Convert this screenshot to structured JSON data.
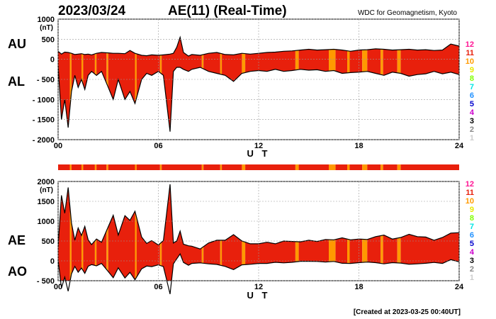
{
  "header": {
    "date": "2023/03/24",
    "title": "AE(11) (Real-Time)",
    "source": "WDC for Geomagnetism, Kyoto"
  },
  "footer": {
    "created": "[Created at 2023-03-25 00:40UT]"
  },
  "legend": {
    "items": [
      {
        "label": "12",
        "color": "#ff1493"
      },
      {
        "label": "11",
        "color": "#e8200c"
      },
      {
        "label": "10",
        "color": "#ff9a00"
      },
      {
        "label": "9",
        "color": "#e8e800"
      },
      {
        "label": "8",
        "color": "#7fff00"
      },
      {
        "label": "7",
        "color": "#00e5e5"
      },
      {
        "label": "6",
        "color": "#1e90ff"
      },
      {
        "label": "5",
        "color": "#0000cd"
      },
      {
        "label": "4",
        "color": "#cc00cc"
      },
      {
        "label": "3",
        "color": "#000000"
      },
      {
        "label": "2",
        "color": "#888888"
      },
      {
        "label": "1",
        "color": "#cccccc"
      }
    ]
  },
  "chart_data": [
    {
      "type": "area",
      "series": [
        {
          "name": "AU"
        },
        {
          "name": "AL"
        }
      ],
      "xlabel": "U T",
      "xlim": [
        0,
        24
      ],
      "xticks": [
        "00",
        "06",
        "12",
        "18",
        "24"
      ],
      "ylabel": "(nT)",
      "ylim": [
        -2000,
        1000
      ],
      "yticks": [
        "1000",
        "500",
        "0",
        "- 500",
        "- 1000",
        "- 1500",
        "- 2000"
      ],
      "x": [
        0,
        0.2,
        0.4,
        0.6,
        0.8,
        1,
        1.2,
        1.4,
        1.6,
        1.8,
        2,
        2.3,
        2.6,
        3,
        3.3,
        3.6,
        4,
        4.3,
        4.6,
        5,
        5.3,
        5.6,
        6,
        6.3,
        6.5,
        6.7,
        6.9,
        7.1,
        7.3,
        7.5,
        7.8,
        8,
        8.5,
        9,
        9.5,
        10,
        10.5,
        11,
        11.5,
        12,
        12.5,
        13,
        13.5,
        14,
        14.5,
        15,
        15.5,
        16,
        16.5,
        17,
        17.5,
        18,
        18.5,
        19,
        19.5,
        20,
        20.5,
        21,
        21.5,
        22,
        22.5,
        23,
        23.5,
        24
      ],
      "au": [
        200,
        130,
        180,
        170,
        150,
        120,
        130,
        140,
        120,
        130,
        110,
        150,
        170,
        160,
        150,
        150,
        140,
        220,
        150,
        100,
        90,
        110,
        100,
        110,
        120,
        130,
        150,
        300,
        550,
        170,
        80,
        120,
        100,
        150,
        170,
        120,
        110,
        150,
        130,
        150,
        170,
        180,
        200,
        210,
        230,
        250,
        230,
        240,
        250,
        230,
        200,
        230,
        240,
        260,
        250,
        230,
        240,
        250,
        230,
        240,
        220,
        230,
        380,
        330
      ],
      "al": [
        -150,
        -1500,
        -1000,
        -1700,
        -800,
        -400,
        -700,
        -500,
        -750,
        -400,
        -300,
        -400,
        -300,
        -700,
        -1000,
        -500,
        -1000,
        -800,
        -1100,
        -500,
        -350,
        -400,
        -300,
        -400,
        -1100,
        -1800,
        -300,
        -200,
        -200,
        -250,
        -300,
        -250,
        -200,
        -300,
        -350,
        -400,
        -550,
        -350,
        -300,
        -280,
        -300,
        -250,
        -300,
        -280,
        -250,
        -270,
        -260,
        -300,
        -280,
        -350,
        -330,
        -320,
        -300,
        -350,
        -400,
        -320,
        -350,
        -420,
        -380,
        -360,
        -300,
        -360,
        -320,
        -380
      ],
      "activity_bands": [
        [
          0,
          11
        ],
        [
          0.7,
          10
        ],
        [
          0.8,
          11
        ],
        [
          1.4,
          10
        ],
        [
          1.5,
          11
        ],
        [
          2.2,
          10
        ],
        [
          2.3,
          11
        ],
        [
          2.9,
          10
        ],
        [
          3.0,
          11
        ],
        [
          4.6,
          10
        ],
        [
          4.7,
          11
        ],
        [
          6.1,
          10
        ],
        [
          6.2,
          11
        ],
        [
          8.6,
          10
        ],
        [
          8.7,
          11
        ],
        [
          9.7,
          10
        ],
        [
          9.8,
          11
        ],
        [
          11.0,
          10
        ],
        [
          11.2,
          11
        ],
        [
          14.2,
          10
        ],
        [
          14.4,
          11
        ],
        [
          16.2,
          10
        ],
        [
          16.6,
          11
        ],
        [
          17.3,
          10
        ],
        [
          17.45,
          11
        ],
        [
          18.2,
          10
        ],
        [
          18.5,
          11
        ],
        [
          19.3,
          10
        ],
        [
          19.45,
          11
        ],
        [
          20.3,
          10
        ],
        [
          20.5,
          11
        ],
        [
          24,
          11
        ]
      ]
    },
    {
      "type": "area",
      "series": [
        {
          "name": "AE"
        },
        {
          "name": "AO"
        }
      ],
      "xlabel": "U T",
      "xlim": [
        0,
        24
      ],
      "xticks": [
        "00",
        "06",
        "12",
        "18",
        "24"
      ],
      "ylabel": "(nT)",
      "ylim": [
        -500,
        2000
      ],
      "yticks": [
        "2000",
        "1500",
        "1000",
        "500",
        "0",
        "- 500"
      ],
      "x": [
        0,
        0.2,
        0.4,
        0.6,
        0.8,
        1,
        1.2,
        1.4,
        1.6,
        1.8,
        2,
        2.3,
        2.6,
        3,
        3.3,
        3.6,
        4,
        4.3,
        4.6,
        5,
        5.3,
        5.6,
        6,
        6.3,
        6.5,
        6.7,
        6.9,
        7.1,
        7.3,
        7.5,
        7.8,
        8,
        8.5,
        9,
        9.5,
        10,
        10.5,
        11,
        11.5,
        12,
        12.5,
        13,
        13.5,
        14,
        14.5,
        15,
        15.5,
        16,
        16.5,
        17,
        17.5,
        18,
        18.5,
        19,
        19.5,
        20,
        20.5,
        21,
        21.5,
        22,
        22.5,
        23,
        23.5,
        24
      ],
      "ae": [
        350,
        1650,
        1200,
        1850,
        950,
        520,
        830,
        640,
        870,
        530,
        410,
        550,
        470,
        860,
        1150,
        650,
        1140,
        1020,
        1250,
        600,
        440,
        510,
        400,
        510,
        1220,
        1930,
        450,
        500,
        750,
        420,
        380,
        370,
        300,
        450,
        520,
        520,
        660,
        500,
        430,
        430,
        470,
        430,
        500,
        490,
        480,
        520,
        490,
        540,
        530,
        580,
        530,
        550,
        540,
        610,
        650,
        550,
        590,
        670,
        610,
        600,
        520,
        590,
        700,
        710
      ],
      "ao": [
        25,
        -685,
        -410,
        -765,
        -325,
        -140,
        -285,
        -180,
        -315,
        -135,
        -95,
        -125,
        -65,
        -270,
        -425,
        -175,
        -430,
        -290,
        -475,
        -200,
        -130,
        -145,
        -100,
        -145,
        -490,
        -835,
        -75,
        50,
        175,
        -40,
        -110,
        -65,
        -50,
        -75,
        -90,
        -140,
        -220,
        -100,
        -85,
        -65,
        -65,
        -35,
        -50,
        -35,
        -10,
        -10,
        -15,
        -30,
        -15,
        -60,
        -65,
        -45,
        -30,
        -45,
        -75,
        -45,
        -55,
        -85,
        -75,
        -60,
        -40,
        -65,
        30,
        -25
      ],
      "activity_bands": [
        [
          0,
          11
        ],
        [
          0.7,
          10
        ],
        [
          0.8,
          11
        ],
        [
          1.4,
          10
        ],
        [
          1.5,
          11
        ],
        [
          2.2,
          10
        ],
        [
          2.3,
          11
        ],
        [
          2.9,
          10
        ],
        [
          3.0,
          11
        ],
        [
          4.6,
          10
        ],
        [
          4.7,
          11
        ],
        [
          6.1,
          10
        ],
        [
          6.2,
          11
        ],
        [
          8.6,
          10
        ],
        [
          8.7,
          11
        ],
        [
          9.7,
          10
        ],
        [
          9.8,
          11
        ],
        [
          11.0,
          10
        ],
        [
          11.2,
          11
        ],
        [
          14.2,
          10
        ],
        [
          14.4,
          11
        ],
        [
          16.2,
          10
        ],
        [
          16.6,
          11
        ],
        [
          17.3,
          10
        ],
        [
          17.45,
          11
        ],
        [
          18.2,
          10
        ],
        [
          18.5,
          11
        ],
        [
          19.3,
          10
        ],
        [
          19.45,
          11
        ],
        [
          20.3,
          10
        ],
        [
          20.5,
          11
        ],
        [
          24,
          11
        ]
      ]
    }
  ]
}
